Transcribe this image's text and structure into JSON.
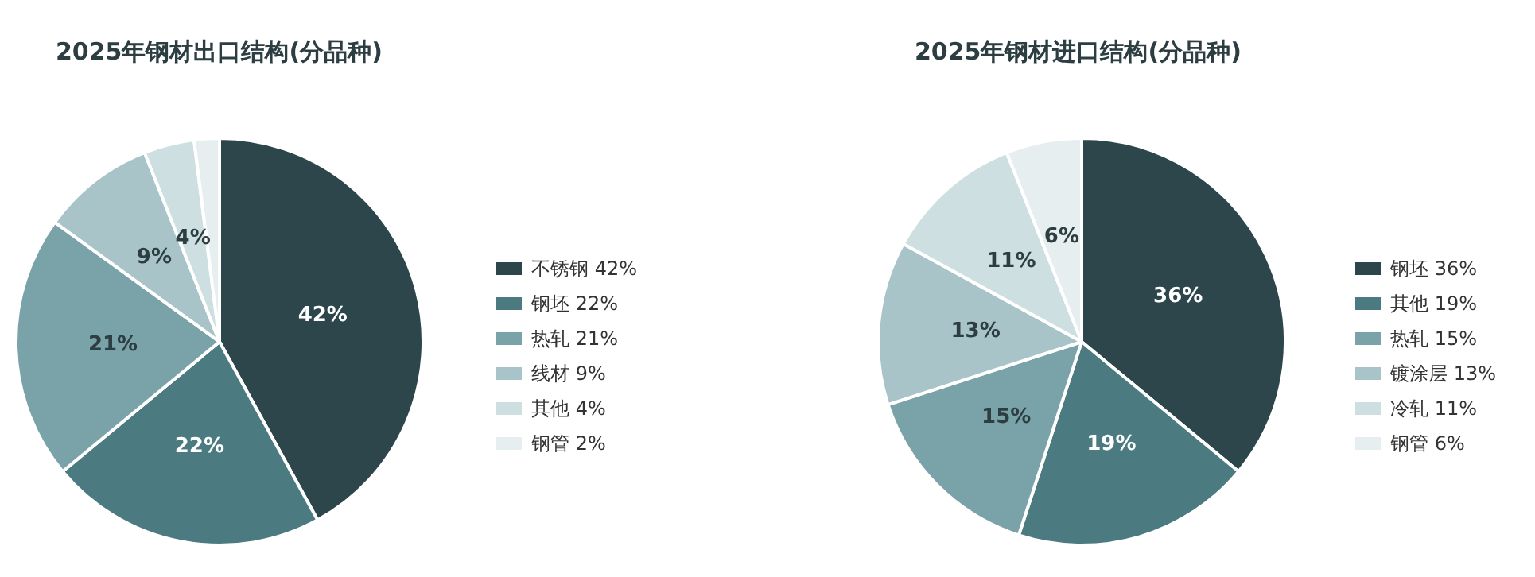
{
  "chart_data": [
    {
      "type": "pie",
      "title": "2025年钢材出口结构(分品种)",
      "categories": [
        "不锈钢",
        "钢坯",
        "热轧",
        "线材",
        "其他",
        "钢管"
      ],
      "values": [
        42,
        22,
        21,
        9,
        4,
        2
      ],
      "value_labels": [
        "42%",
        "22%",
        "21%",
        "9%",
        "4%",
        "2%"
      ],
      "colors": [
        "#2c464b",
        "#4b7a81",
        "#7aa3a9",
        "#a8c4c8",
        "#cedfe1",
        "#e6eeef"
      ],
      "legend": "right"
    },
    {
      "type": "pie",
      "title": "2025年钢材进口结构(分品种)",
      "categories": [
        "钢坯",
        "其他",
        "热轧",
        "镀涂层",
        "冷轧",
        "钢管"
      ],
      "values": [
        36,
        19,
        15,
        13,
        11,
        6
      ],
      "value_labels": [
        "36%",
        "19%",
        "15%",
        "13%",
        "11%",
        "6%"
      ],
      "colors": [
        "#2c464b",
        "#4b7a81",
        "#7aa3a9",
        "#a8c4c8",
        "#cedfe1",
        "#e6eeef"
      ],
      "legend": "right"
    }
  ]
}
